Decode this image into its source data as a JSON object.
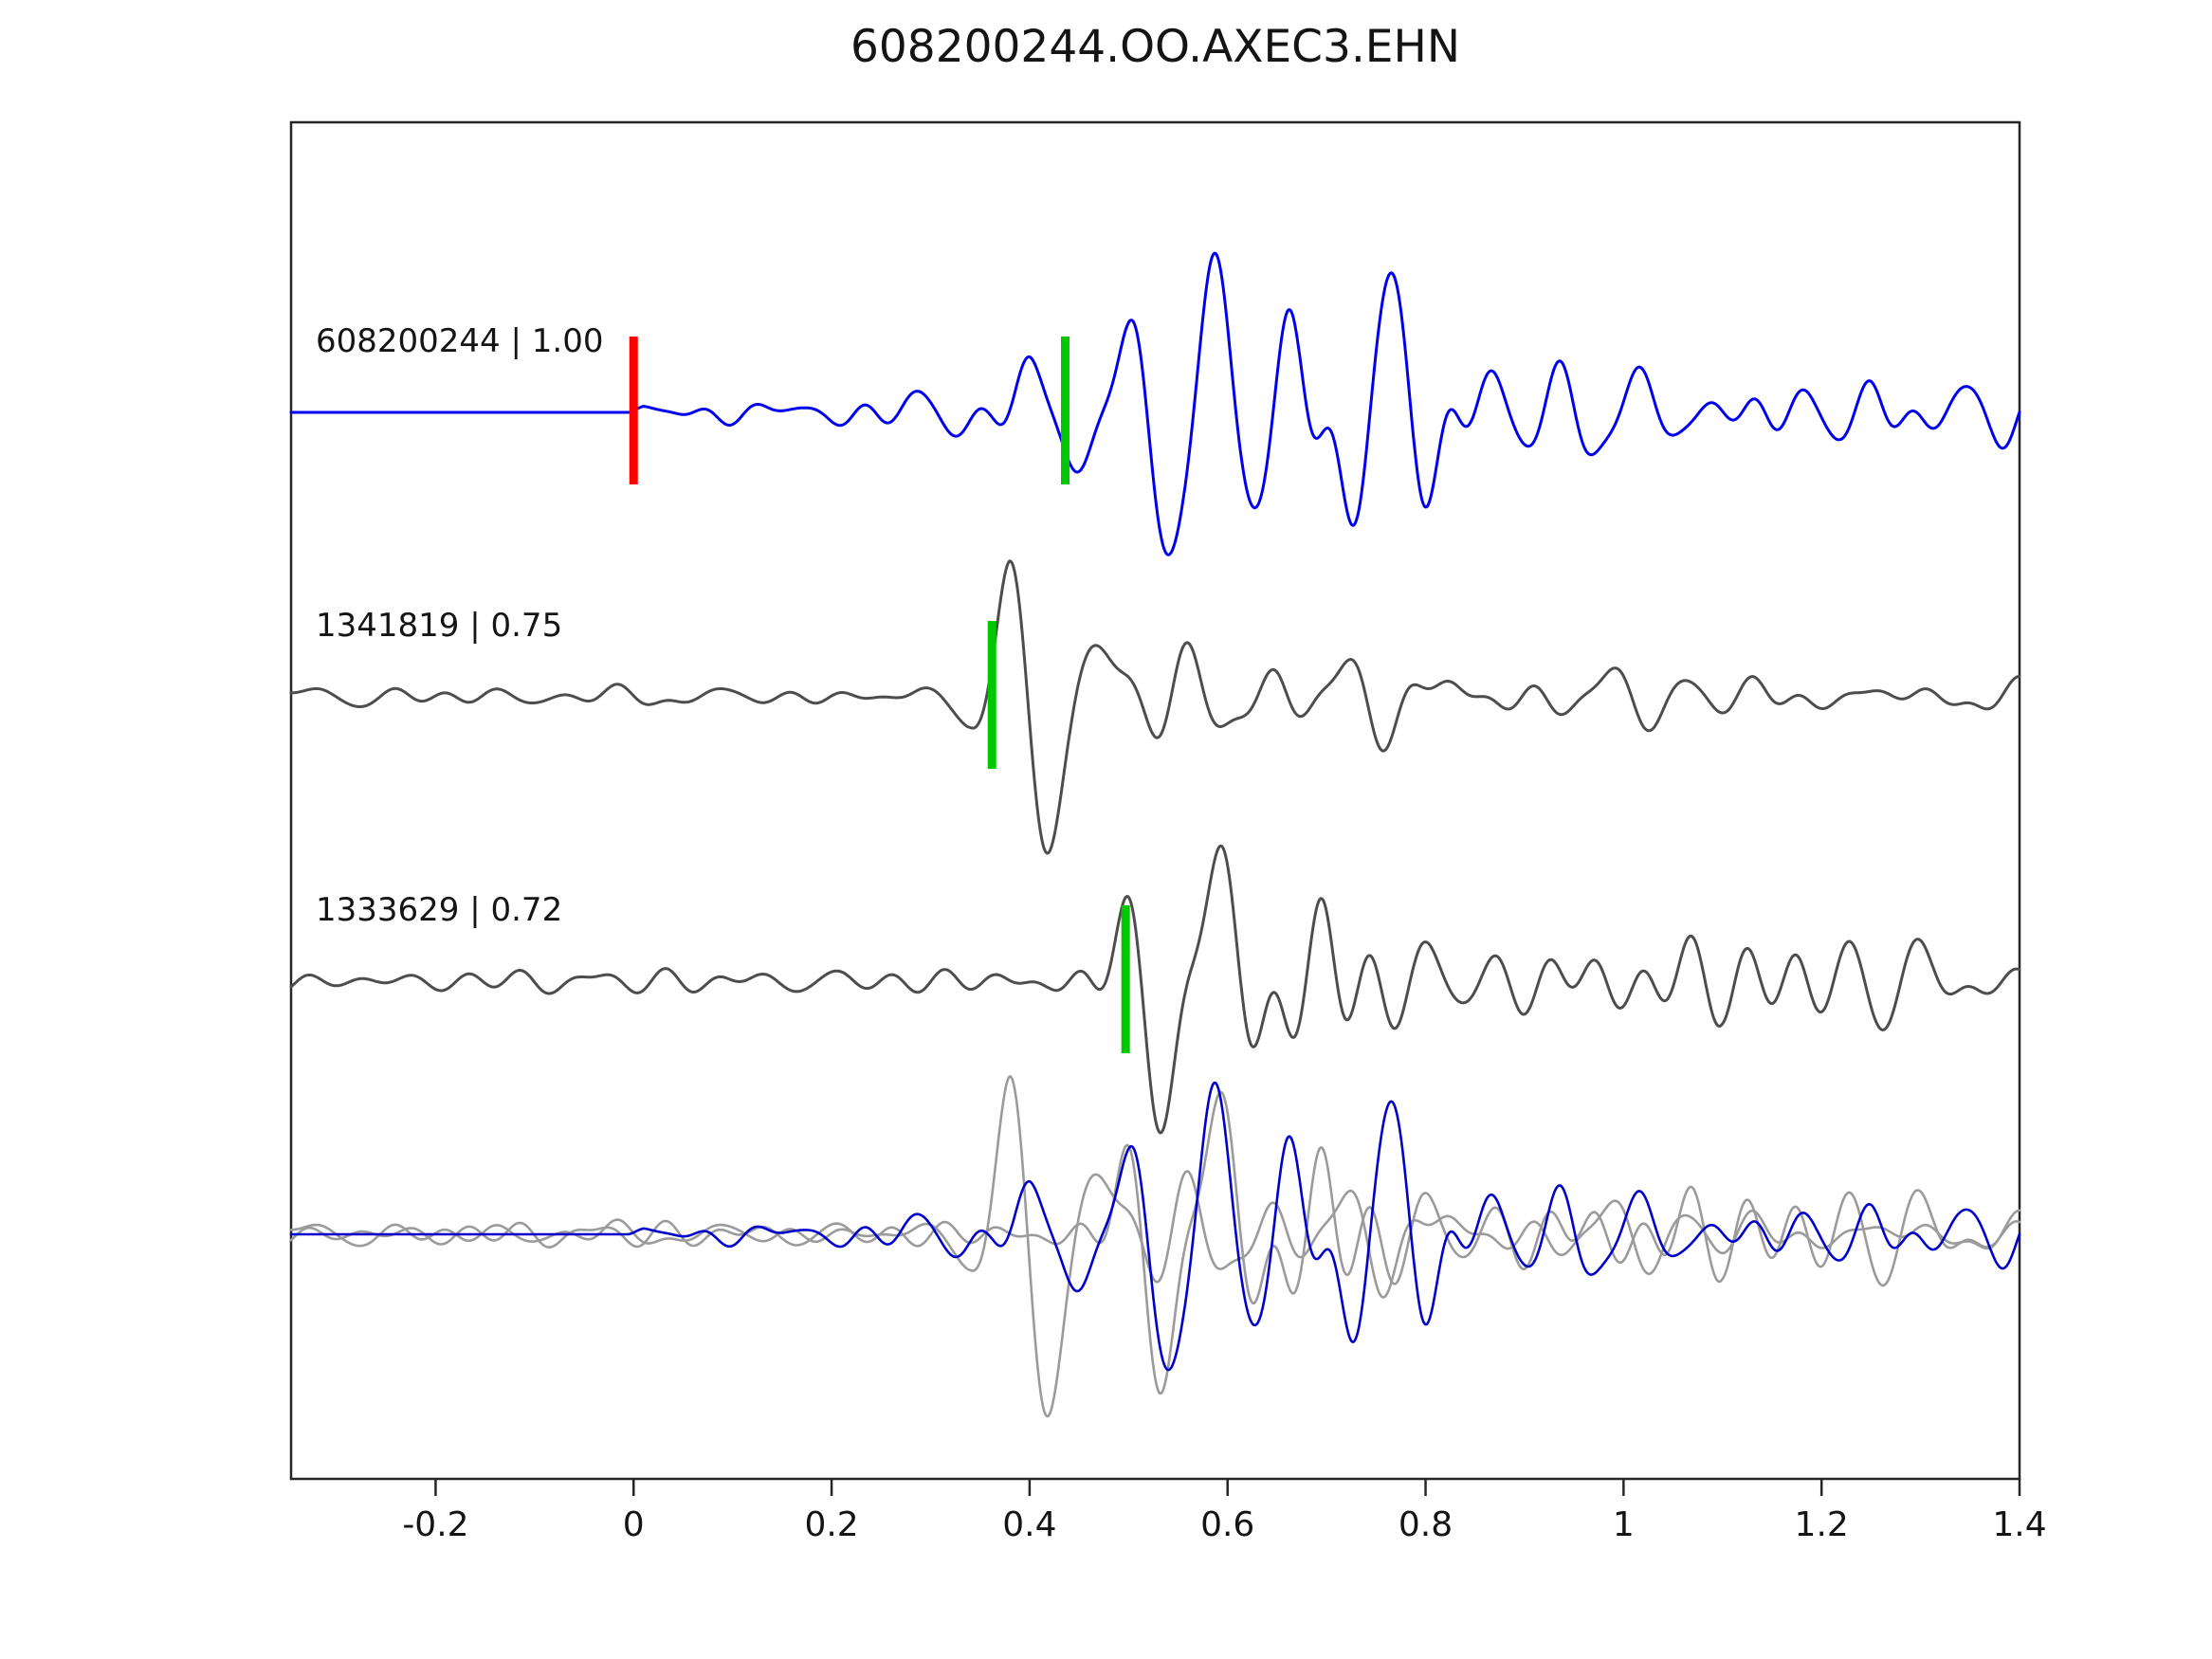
{
  "title": "608200244.OO.AXEC3.EHN",
  "chart_data": {
    "type": "line",
    "title": "608200244.OO.AXEC3.EHN",
    "xlabel": "",
    "ylabel": "",
    "xlim": [
      -0.346,
      1.4
    ],
    "x_ticks": [
      -0.2,
      0,
      0.2,
      0.4,
      0.6,
      0.8,
      1.0,
      1.2,
      1.4
    ],
    "x_tick_labels": [
      "-0.2",
      "0",
      "0.2",
      "0.4",
      "0.6",
      "0.8",
      "1",
      "1.2",
      "1.4"
    ],
    "grid": false,
    "legend": "none",
    "background": "#ffffff",
    "axis_color": "#262626",
    "pick_colors": {
      "template_start": "#ff0000",
      "detection_pick": "#00c800"
    },
    "traces": [
      {
        "id": "608200244",
        "label": "608200244 | 1.00",
        "correlation": 1.0,
        "color": "#0000ee",
        "picks": [
          {
            "x": 0.0,
            "color": "#ff0000",
            "name": "template-start"
          },
          {
            "x": 0.436,
            "color": "#00c800",
            "name": "detection-pick"
          }
        ],
        "synthesis": {
          "seed": 7,
          "ncomp": 14,
          "fmin": 7,
          "fmax": 26,
          "wavelet": {
            "center": 0.561,
            "width": 0.062,
            "freq": 11,
            "amp": 1.0,
            "phase": 0
          },
          "envelope": [
            [
              -0.346,
              0
            ],
            [
              -0.005,
              0
            ],
            [
              0.01,
              0.05
            ],
            [
              0.05,
              0.07
            ],
            [
              0.12,
              0.06
            ],
            [
              0.2,
              0.07
            ],
            [
              0.3,
              0.08
            ],
            [
              0.36,
              0.12
            ],
            [
              0.4,
              0.25
            ],
            [
              0.44,
              0.32
            ],
            [
              0.48,
              0.34
            ],
            [
              0.55,
              0.33
            ],
            [
              0.62,
              0.42
            ],
            [
              0.68,
              0.46
            ],
            [
              0.74,
              0.44
            ],
            [
              0.8,
              0.36
            ],
            [
              0.9,
              0.26
            ],
            [
              1.0,
              0.2
            ],
            [
              1.1,
              0.16
            ],
            [
              1.25,
              0.18
            ],
            [
              1.4,
              0.13
            ]
          ]
        }
      },
      {
        "id": "1341819",
        "label": "1341819 | 0.75",
        "correlation": 0.75,
        "color": "#4d4d4d",
        "picks": [
          {
            "x": 0.362,
            "color": "#00c800",
            "name": "detection-pick"
          }
        ],
        "synthesis": {
          "seed": 21,
          "ncomp": 14,
          "fmin": 6,
          "fmax": 24,
          "wavelet": {
            "center": 0.42,
            "width": 0.055,
            "freq": 11,
            "amp": 1.0,
            "phase": -1.5708
          },
          "envelope": [
            [
              -0.346,
              0.05
            ],
            [
              0.1,
              0.06
            ],
            [
              0.25,
              0.06
            ],
            [
              0.3,
              0.08
            ],
            [
              0.34,
              0.12
            ],
            [
              0.38,
              0.28
            ],
            [
              0.44,
              0.32
            ],
            [
              0.5,
              0.36
            ],
            [
              0.58,
              0.3
            ],
            [
              0.66,
              0.36
            ],
            [
              0.75,
              0.3
            ],
            [
              0.85,
              0.2
            ],
            [
              1.0,
              0.16
            ],
            [
              1.2,
              0.13
            ],
            [
              1.4,
              0.11
            ]
          ]
        }
      },
      {
        "id": "1333629",
        "label": "1333629 | 0.72",
        "correlation": 0.72,
        "color": "#4d4d4d",
        "picks": [
          {
            "x": 0.497,
            "color": "#00c800",
            "name": "detection-pick"
          }
        ],
        "synthesis": {
          "seed": 33,
          "ncomp": 14,
          "fmin": 6,
          "fmax": 24,
          "wavelet": {
            "center": 0.565,
            "width": 0.06,
            "freq": 11,
            "amp": 1.0,
            "phase": 0
          },
          "envelope": [
            [
              -0.346,
              0.05
            ],
            [
              0.15,
              0.06
            ],
            [
              0.3,
              0.07
            ],
            [
              0.42,
              0.1
            ],
            [
              0.46,
              0.18
            ],
            [
              0.5,
              0.28
            ],
            [
              0.56,
              0.38
            ],
            [
              0.64,
              0.42
            ],
            [
              0.7,
              0.44
            ],
            [
              0.78,
              0.3
            ],
            [
              0.88,
              0.24
            ],
            [
              0.98,
              0.2
            ],
            [
              1.1,
              0.15
            ],
            [
              1.18,
              0.24
            ],
            [
              1.28,
              0.24
            ],
            [
              1.4,
              0.12
            ]
          ]
        }
      }
    ],
    "overlay": {
      "description": "overlay of template (blue) and detected events (gray)",
      "members": [
        {
          "trace_index": 2,
          "color": "#9b9b9b",
          "amp_scale": 1.05
        },
        {
          "trace_index": 1,
          "color": "#9b9b9b",
          "amp_scale": 1.2
        },
        {
          "trace_index": 0,
          "color": "#0000cc",
          "amp_scale": 1.0
        }
      ]
    }
  }
}
